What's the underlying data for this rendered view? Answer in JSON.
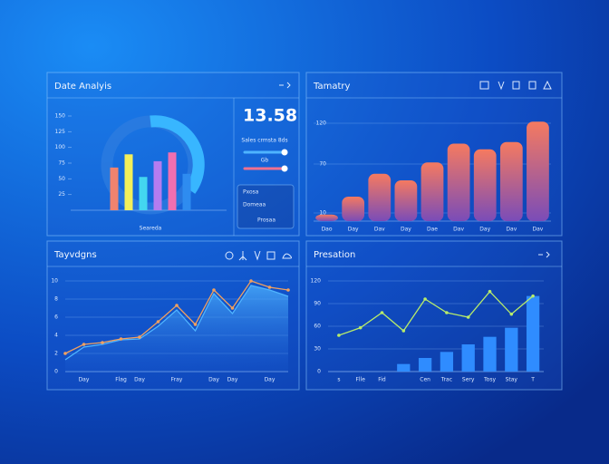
{
  "chart_data": [
    {
      "type": "bar",
      "title": "Date Analyis",
      "metric": "13.58",
      "metric_label": "Sales crmsta 8ds",
      "slider_label": "Gb",
      "list": [
        "Pxosa",
        "Domeaa",
        "Prosaa"
      ],
      "xlabel": "Seareda",
      "categories": [
        null,
        null,
        null,
        null,
        null,
        null
      ],
      "values": [
        68,
        89,
        53,
        78,
        92,
        58
      ],
      "colors": [
        "#f0836e",
        "#f3ef5a",
        "#43d6f0",
        "#b47cf0",
        "#f06fb0",
        "#2e8cf0"
      ],
      "ylim": [
        0,
        150
      ],
      "yticks": [
        25,
        50,
        75,
        100,
        125,
        150
      ],
      "grid": false
    },
    {
      "type": "bar",
      "title": "Tamatry",
      "categories": [
        "Dao",
        "Day",
        "Dav",
        "Day",
        "Dae",
        "Dav",
        "Day",
        "Dav",
        "Dav"
      ],
      "values": [
        8,
        30,
        58,
        50,
        72,
        95,
        88,
        97,
        122
      ],
      "color": "#f07a64",
      "ylim": [
        0,
        140
      ],
      "yticks": [
        10,
        70,
        120
      ],
      "grid": true
    },
    {
      "type": "area",
      "title": "Tayvdgns",
      "categories": [
        null,
        "Day",
        null,
        "Flag",
        "Day",
        null,
        "Fray",
        null,
        "Day",
        "Day",
        null,
        "Day",
        null
      ],
      "series": [
        {
          "color": "#f0a060",
          "values": [
            2.0,
            3.0,
            3.2,
            3.6,
            3.8,
            5.5,
            7.3,
            5.2,
            9.0,
            7.0,
            10.0,
            9.3,
            9.0
          ]
        },
        {
          "color": "#4fb4ff",
          "values": [
            1.3,
            2.7,
            3.0,
            3.5,
            3.6,
            5.0,
            6.8,
            4.5,
            8.6,
            6.4,
            9.5,
            9.0,
            8.3
          ]
        }
      ],
      "ylim": [
        0,
        11
      ],
      "yticks": [
        0,
        2,
        4,
        6,
        8,
        10
      ],
      "grid": true
    },
    {
      "type": "combo",
      "title": "Presation",
      "categories": [
        "s",
        "Flle",
        "Fid",
        null,
        "Cen",
        "Trac",
        "Sery",
        "Tosy",
        "Stay",
        "T"
      ],
      "series": [
        {
          "type": "line",
          "color": "#b8ec6a",
          "values": [
            48,
            58,
            78,
            54,
            96,
            78,
            72,
            106,
            76,
            100
          ]
        },
        {
          "type": "bar",
          "color": "#2f8cff",
          "values": [
            null,
            null,
            null,
            10,
            18,
            26,
            36,
            46,
            58,
            100
          ]
        }
      ],
      "ylim": [
        0,
        120
      ],
      "yticks": [
        0,
        30,
        60,
        90,
        120
      ],
      "grid": true
    }
  ]
}
